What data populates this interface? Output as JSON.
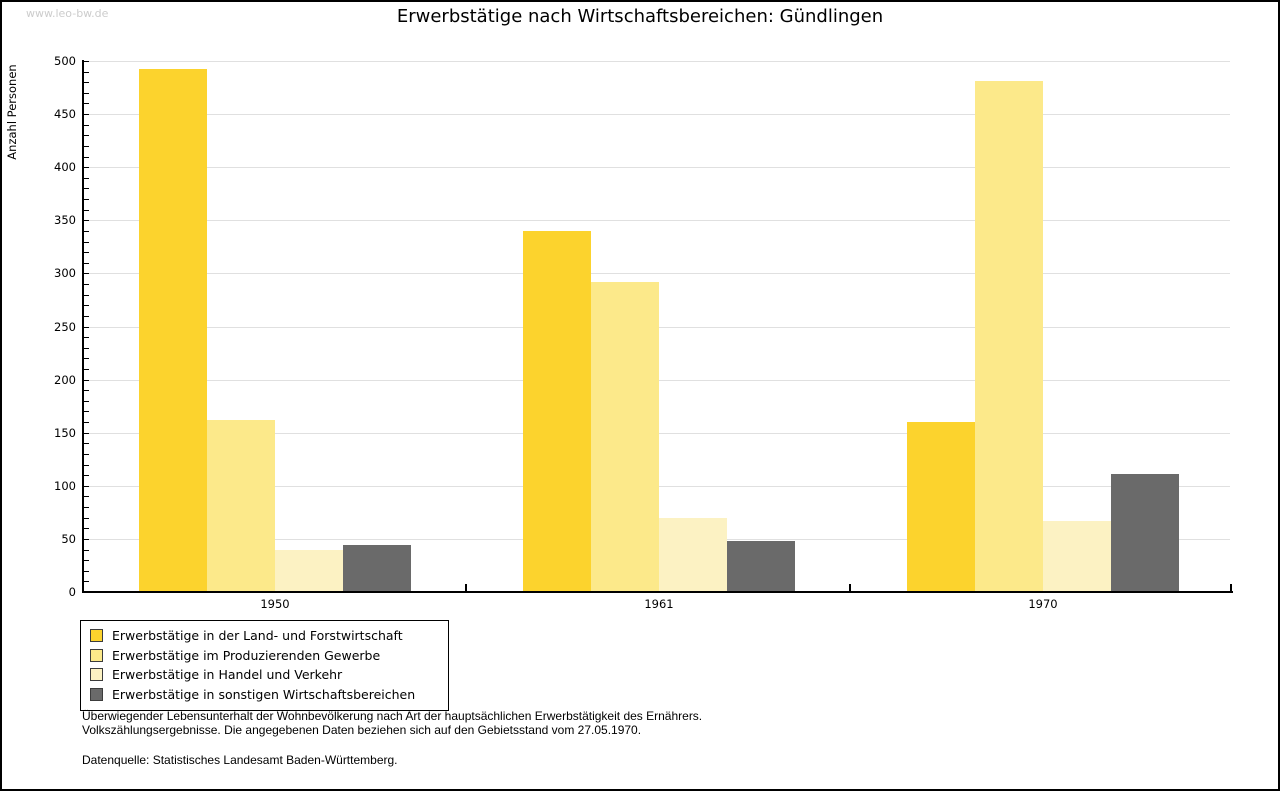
{
  "watermark": "www.leo-bw.de",
  "title": "Erwerbstätige nach Wirtschaftsbereichen: Gündlingen",
  "chart_data": {
    "type": "bar",
    "title": "Erwerbstätige nach Wirtschaftsbereichen: Gündlingen",
    "ylabel": "Anzahl Personen",
    "xlabel": "",
    "categories": [
      "1950",
      "1961",
      "1970"
    ],
    "series": [
      {
        "name": "Erwerbstätige in der Land- und Forstwirtschaft",
        "color": "#FCD32D",
        "values": [
          492,
          340,
          160
        ]
      },
      {
        "name": "Erwerbstätige im Produzierenden Gewerbe",
        "color": "#FCE98A",
        "values": [
          162,
          292,
          481
        ]
      },
      {
        "name": "Erwerbstätige in Handel und Verkehr",
        "color": "#FCF2C3",
        "values": [
          40,
          70,
          67
        ]
      },
      {
        "name": "Erwerbstätige in sonstigen Wirtschaftsbereichen",
        "color": "#6A6A6A",
        "values": [
          44,
          48,
          111
        ]
      }
    ],
    "ylim": [
      0,
      500
    ],
    "yticks": [
      0,
      50,
      100,
      150,
      200,
      250,
      300,
      350,
      400,
      450,
      500
    ],
    "minor_tick_step": 10,
    "grid": true,
    "gridline_color": "#e0e0e0",
    "legend_position": "bottom-left"
  },
  "footnotes": {
    "line1": "Überwiegender Lebensunterhalt der Wohnbevölkerung nach Art der hauptsächlichen Erwerbstätigkeit des Ernährers.",
    "line2": "Volkszählungsergebnisse. Die angegebenen Daten beziehen sich auf den Gebietsstand vom 27.05.1970.",
    "source": "Datenquelle: Statistisches Landesamt Baden-Württemberg."
  }
}
